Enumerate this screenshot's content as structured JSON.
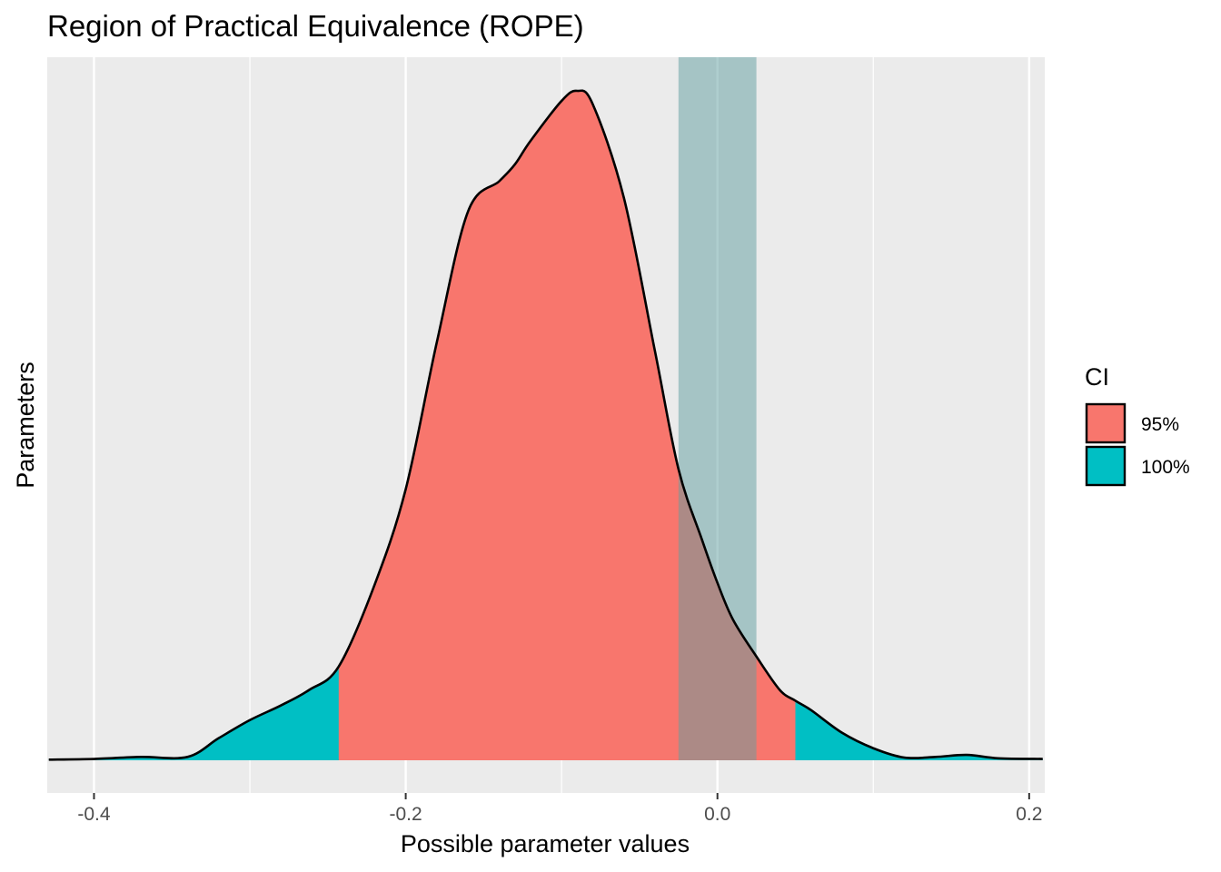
{
  "chart_data": {
    "type": "area",
    "title": "Region of Practical Equivalence (ROPE)",
    "xlabel": "Possible parameter values",
    "ylabel": "Parameters",
    "xlim": [
      -0.43,
      0.21
    ],
    "ylim": [
      0,
      1
    ],
    "x_ticks": [
      -0.4,
      -0.2,
      0.0,
      0.2
    ],
    "x_tick_labels": [
      "-0.4",
      "-0.2",
      "0.0",
      "0.2"
    ],
    "grid": true,
    "legend": {
      "title": "CI",
      "placement": "right",
      "entries": [
        {
          "label": "95%",
          "color": "#F8766D"
        },
        {
          "label": "100%",
          "color": "#00BFC4"
        }
      ]
    },
    "ci_95": [
      -0.243,
      0.05
    ],
    "rope": [
      -0.025,
      0.025
    ],
    "rope_color": "#5f9ea0",
    "density": {
      "x": [
        -0.429,
        -0.4,
        -0.37,
        -0.34,
        -0.32,
        -0.3,
        -0.28,
        -0.262,
        -0.243,
        -0.22,
        -0.2,
        -0.18,
        -0.16,
        -0.14,
        -0.13,
        -0.12,
        -0.1,
        -0.09,
        -0.08,
        -0.06,
        -0.04,
        -0.025,
        -0.01,
        0.0,
        0.01,
        0.025,
        0.04,
        0.05,
        0.06,
        0.08,
        0.1,
        0.12,
        0.14,
        0.16,
        0.18,
        0.2087
      ],
      "y": [
        0.001,
        0.002,
        0.005,
        0.005,
        0.033,
        0.06,
        0.082,
        0.105,
        0.14,
        0.262,
        0.405,
        0.625,
        0.82,
        0.865,
        0.89,
        0.925,
        0.985,
        1.0,
        0.98,
        0.84,
        0.61,
        0.435,
        0.33,
        0.265,
        0.21,
        0.155,
        0.105,
        0.089,
        0.075,
        0.041,
        0.018,
        0.004,
        0.005,
        0.008,
        0.003,
        0.002
      ]
    }
  }
}
